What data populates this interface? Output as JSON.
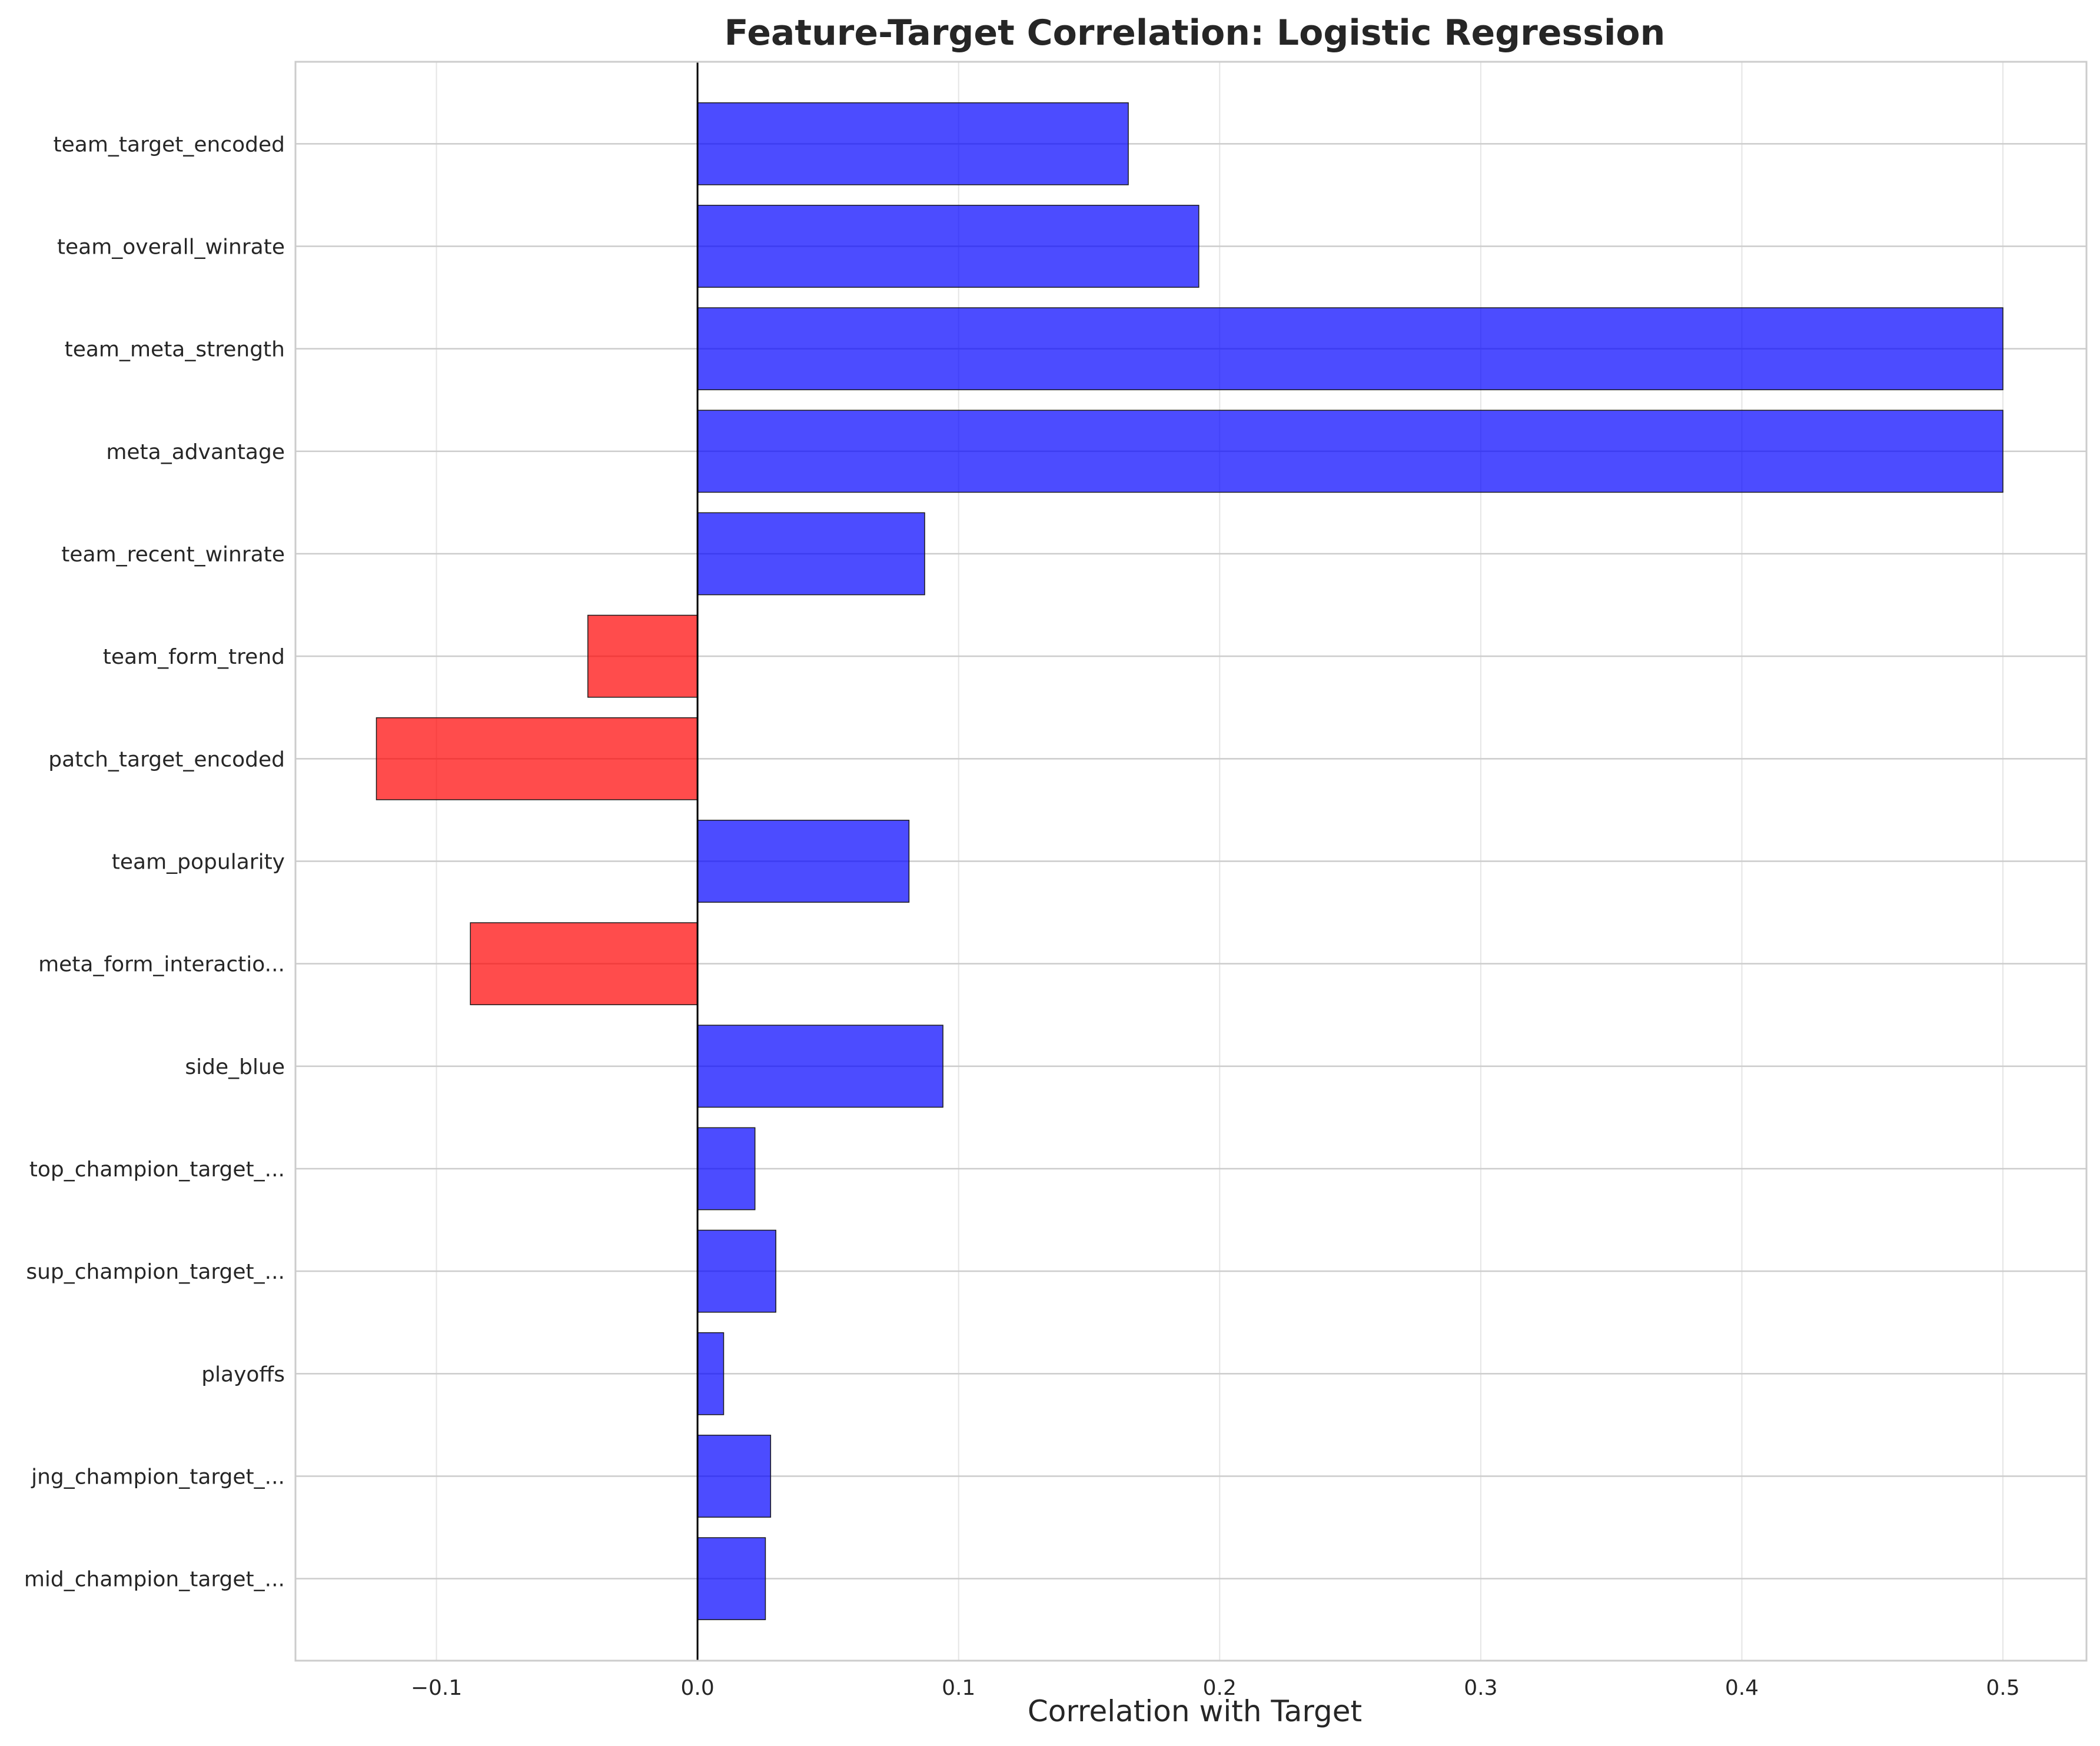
{
  "chart_data": {
    "type": "bar",
    "orientation": "horizontal",
    "title": "Feature-Target Correlation: Logistic Regression",
    "xlabel": "Correlation with Target",
    "ylabel": "",
    "xlim": [
      -0.154,
      0.532
    ],
    "xticks": [
      -0.1,
      0.0,
      0.1,
      0.2,
      0.3,
      0.4,
      0.5
    ],
    "xtick_labels": [
      "−0.1",
      "0.0",
      "0.1",
      "0.2",
      "0.3",
      "0.4",
      "0.5"
    ],
    "grid": true,
    "colors": {
      "positive": "#0000ff",
      "negative": "#ff0000",
      "bar_alpha": 0.7,
      "edge": "#000000"
    },
    "categories": [
      "team_target_encoded",
      "team_overall_winrate",
      "team_meta_strength",
      "meta_advantage",
      "team_recent_winrate",
      "team_form_trend",
      "patch_target_encoded",
      "team_popularity",
      "meta_form_interactio...",
      "side_blue",
      "top_champion_target_...",
      "sup_champion_target_...",
      "playoffs",
      "jng_champion_target_...",
      "mid_champion_target_..."
    ],
    "values": [
      0.165,
      0.192,
      0.5,
      0.5,
      0.087,
      -0.042,
      -0.123,
      0.081,
      -0.087,
      0.094,
      0.022,
      0.03,
      0.01,
      0.028,
      0.026
    ]
  }
}
